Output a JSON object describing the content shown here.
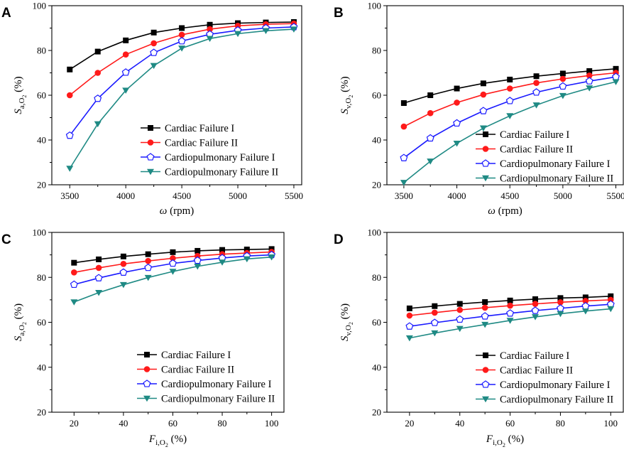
{
  "chart_data": [
    {
      "type": "line",
      "panel_label": "A",
      "xlabel_symbol": "ω",
      "xlabel_unit": "(rpm)",
      "ylabel_symbol": "S",
      "ylabel_subscript": "a,O",
      "ylabel_subsub": "2",
      "ylabel_unit": "(%)",
      "xlim": [
        3340,
        5570
      ],
      "ylim": [
        20,
        100
      ],
      "xticks": [
        3500,
        4000,
        4500,
        5000,
        5500
      ],
      "yticks": [
        20,
        40,
        60,
        80,
        100
      ],
      "x": [
        3500,
        3750,
        4000,
        4250,
        4500,
        4750,
        5000,
        5250,
        5500
      ],
      "legend_position": "bottom-right",
      "series": [
        {
          "name": "Cardiac Failure I",
          "values": [
            71.5,
            79.5,
            84.5,
            88,
            90,
            91.5,
            92.2,
            92.5,
            92.7
          ]
        },
        {
          "name": "Cardiac Failure II",
          "values": [
            60,
            70,
            78.2,
            83.2,
            87,
            89.5,
            91,
            91.7,
            92
          ]
        },
        {
          "name": "Cardiopulmonary Failure I",
          "values": [
            42,
            58.5,
            70.2,
            79,
            84.2,
            87.2,
            89,
            90,
            90.5
          ]
        },
        {
          "name": "Cardiopulmonary Failure II",
          "values": [
            27.3,
            47.2,
            62.2,
            73.2,
            81,
            85.3,
            87.5,
            88.8,
            89.5
          ]
        }
      ]
    },
    {
      "type": "line",
      "panel_label": "B",
      "xlabel_symbol": "ω",
      "xlabel_unit": "(rpm)",
      "ylabel_symbol": "S",
      "ylabel_subscript": "v,O",
      "ylabel_subsub": "2",
      "ylabel_unit": "(%)",
      "xlim": [
        3340,
        5570
      ],
      "ylim": [
        20,
        100
      ],
      "xticks": [
        3500,
        4000,
        4500,
        5000,
        5500
      ],
      "yticks": [
        20,
        40,
        60,
        80,
        100
      ],
      "x": [
        3500,
        3750,
        4000,
        4250,
        4500,
        4750,
        5000,
        5250,
        5500
      ],
      "legend_position": "bottom-right",
      "series": [
        {
          "name": "Cardiac Failure I",
          "values": [
            56.5,
            60,
            63,
            65.3,
            67,
            68.5,
            69.7,
            70.8,
            71.8
          ]
        },
        {
          "name": "Cardiac Failure II",
          "values": [
            46,
            52,
            56.7,
            60.3,
            63,
            65.5,
            67.3,
            68.8,
            70
          ]
        },
        {
          "name": "Cardiopulmonary Failure I",
          "values": [
            32,
            40.8,
            47.5,
            53,
            57.5,
            61.3,
            64,
            66.3,
            68.2
          ]
        },
        {
          "name": "Cardiopulmonary Failure II",
          "values": [
            21,
            30.5,
            38.5,
            45.3,
            50.8,
            55.6,
            59.8,
            63.2,
            66
          ]
        }
      ]
    },
    {
      "type": "line",
      "panel_label": "C",
      "xlabel_symbol": "F",
      "xlabel_subscript": "i,O",
      "xlabel_subsub": "2",
      "xlabel_unit": "(%)",
      "ylabel_symbol": "S",
      "ylabel_subscript": "a,O",
      "ylabel_subsub": "2",
      "ylabel_unit": "(%)",
      "xlim": [
        11,
        105
      ],
      "ylim": [
        20,
        100
      ],
      "xticks": [
        20,
        40,
        60,
        80,
        100
      ],
      "yticks": [
        20,
        40,
        60,
        80,
        100
      ],
      "x": [
        20,
        30,
        40,
        50,
        60,
        70,
        80,
        90,
        100
      ],
      "legend_position": "bottom-right",
      "series": [
        {
          "name": "Cardiac Failure I",
          "values": [
            86.5,
            88,
            89.3,
            90.3,
            91.2,
            91.8,
            92.2,
            92.4,
            92.6
          ]
        },
        {
          "name": "Cardiac Failure II",
          "values": [
            82.2,
            84.2,
            86,
            87.3,
            88.5,
            89.5,
            90.3,
            90.8,
            91.3
          ]
        },
        {
          "name": "Cardiopulmonary Failure I",
          "values": [
            76.8,
            79.7,
            82.2,
            84.3,
            86.2,
            87.5,
            88.6,
            89.5,
            90
          ]
        },
        {
          "name": "Cardiopulmonary Failure II",
          "values": [
            69,
            73.2,
            76.7,
            79.9,
            82.6,
            84.9,
            86.7,
            88.2,
            89
          ]
        }
      ]
    },
    {
      "type": "line",
      "panel_label": "D",
      "xlabel_symbol": "F",
      "xlabel_subscript": "i,O",
      "xlabel_subsub": "2",
      "xlabel_unit": "(%)",
      "ylabel_symbol": "S",
      "ylabel_subscript": "v,O",
      "ylabel_subsub": "2",
      "ylabel_unit": "(%)",
      "xlim": [
        11,
        105
      ],
      "ylim": [
        20,
        100
      ],
      "xticks": [
        20,
        40,
        60,
        80,
        100
      ],
      "yticks": [
        20,
        40,
        60,
        80,
        100
      ],
      "x": [
        20,
        30,
        40,
        50,
        60,
        70,
        80,
        90,
        100
      ],
      "legend_position": "bottom-right",
      "series": [
        {
          "name": "Cardiac Failure I",
          "values": [
            66.2,
            67.2,
            68.2,
            69,
            69.7,
            70.3,
            70.8,
            71.1,
            71.6
          ]
        },
        {
          "name": "Cardiac Failure II",
          "values": [
            63,
            64.3,
            65.5,
            66.5,
            67.4,
            68.2,
            68.9,
            69.5,
            70
          ]
        },
        {
          "name": "Cardiopulmonary Failure I",
          "values": [
            58.2,
            59.8,
            61.3,
            62.7,
            64,
            65.2,
            66.2,
            67.2,
            68
          ]
        },
        {
          "name": "Cardiopulmonary Failure II",
          "values": [
            53,
            55.2,
            57.2,
            59,
            60.8,
            62.4,
            63.8,
            65,
            66
          ]
        }
      ]
    }
  ],
  "series_styles": [
    {
      "color": "#000000",
      "marker": "square"
    },
    {
      "color": "#ff1a1a",
      "marker": "circle"
    },
    {
      "color": "#1a1aff",
      "marker": "pentagon-open"
    },
    {
      "color": "#1f8a84",
      "marker": "triangle-down"
    }
  ]
}
